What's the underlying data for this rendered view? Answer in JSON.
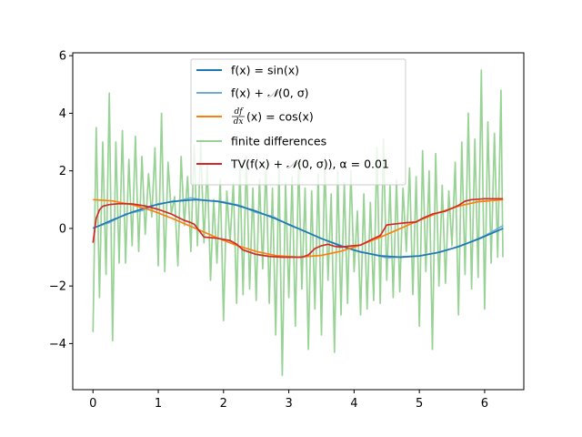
{
  "chart_data": {
    "type": "line",
    "title": "",
    "xlabel": "",
    "ylabel": "",
    "xlim": [
      -0.31,
      6.6
    ],
    "ylim": [
      -5.6,
      6.1
    ],
    "grid": false,
    "legend_position": "upper-center",
    "x_ticks": [
      {
        "value": 0,
        "label": "0"
      },
      {
        "value": 1,
        "label": "1"
      },
      {
        "value": 2,
        "label": "2"
      },
      {
        "value": 3,
        "label": "3"
      },
      {
        "value": 4,
        "label": "4"
      },
      {
        "value": 5,
        "label": "5"
      },
      {
        "value": 6,
        "label": "6"
      }
    ],
    "y_ticks": [
      {
        "value": -4,
        "label": "−4"
      },
      {
        "value": -2,
        "label": "−2"
      },
      {
        "value": 0,
        "label": "0"
      },
      {
        "value": 2,
        "label": "2"
      },
      {
        "value": 4,
        "label": "4"
      },
      {
        "value": 6,
        "label": "6"
      }
    ],
    "series": [
      {
        "name": "f(x) = sin(x)",
        "legend_prefix": "f(x) = sin(x)",
        "legend_suffix": "",
        "color": "#1f77b4",
        "x": [
          0,
          0.3,
          0.6,
          0.9,
          1.2,
          1.5708,
          1.9,
          2.2,
          2.5,
          2.8,
          3.1416,
          3.5,
          3.8,
          4.1,
          4.4,
          4.7124,
          5.0,
          5.3,
          5.6,
          5.9,
          6.2832
        ],
        "y": [
          0,
          0.296,
          0.565,
          0.783,
          0.932,
          1.0,
          0.946,
          0.808,
          0.598,
          0.335,
          0,
          -0.351,
          -0.612,
          -0.818,
          -0.952,
          -1.0,
          -0.959,
          -0.832,
          -0.631,
          -0.374,
          0
        ]
      },
      {
        "name": "f(x) + 𝒩(0, σ)",
        "legend_prefix": "f(x) + ",
        "legend_suffix": "(0, σ)",
        "color": "#6baed6",
        "x": [
          0,
          0.25,
          0.5,
          0.75,
          1.0,
          1.25,
          1.5,
          1.75,
          2.0,
          2.25,
          2.5,
          2.75,
          3.0,
          3.25,
          3.5,
          3.75,
          4.0,
          4.25,
          4.5,
          4.75,
          5.0,
          5.25,
          5.5,
          5.75,
          6.0,
          6.2832
        ],
        "y": [
          0.02,
          0.2,
          0.5,
          0.62,
          0.86,
          0.93,
          1.06,
          0.96,
          0.92,
          0.8,
          0.55,
          0.42,
          0.12,
          -0.1,
          -0.36,
          -0.55,
          -0.76,
          -0.88,
          -1.02,
          -0.98,
          -0.95,
          -0.85,
          -0.7,
          -0.5,
          -0.26,
          0.1
        ]
      },
      {
        "name": "df/dx(x) = cos(x)",
        "legend_prefix": "",
        "legend_suffix": "(x) = cos(x)",
        "color": "#ff7f0e",
        "x": [
          0,
          0.3,
          0.6,
          0.9,
          1.2,
          1.5708,
          1.9,
          2.2,
          2.5,
          2.8,
          3.1416,
          3.5,
          3.8,
          4.1,
          4.4,
          4.7124,
          5.0,
          5.3,
          5.6,
          5.9,
          6.2832
        ],
        "y": [
          1.0,
          0.955,
          0.825,
          0.622,
          0.362,
          0,
          -0.323,
          -0.589,
          -0.801,
          -0.942,
          -1.0,
          -0.936,
          -0.791,
          -0.575,
          -0.307,
          0,
          0.284,
          0.554,
          0.776,
          0.927,
          1.0
        ]
      },
      {
        "name": "finite differences",
        "legend_prefix": "finite differences",
        "legend_suffix": "",
        "color": "#98d395",
        "x": [
          0.0,
          0.05,
          0.1,
          0.15,
          0.2,
          0.25,
          0.3,
          0.35,
          0.4,
          0.45,
          0.5,
          0.55,
          0.6,
          0.65,
          0.7,
          0.75,
          0.8,
          0.85,
          0.9,
          0.95,
          1.0,
          1.05,
          1.1,
          1.15,
          1.2,
          1.25,
          1.3,
          1.35,
          1.4,
          1.45,
          1.5,
          1.55,
          1.6,
          1.65,
          1.7,
          1.75,
          1.8,
          1.85,
          1.9,
          1.95,
          2.0,
          2.05,
          2.1,
          2.15,
          2.2,
          2.25,
          2.3,
          2.35,
          2.4,
          2.45,
          2.5,
          2.55,
          2.6,
          2.65,
          2.7,
          2.75,
          2.8,
          2.85,
          2.9,
          2.95,
          3.0,
          3.05,
          3.1,
          3.15,
          3.2,
          3.25,
          3.3,
          3.35,
          3.4,
          3.45,
          3.5,
          3.55,
          3.6,
          3.65,
          3.7,
          3.75,
          3.8,
          3.85,
          3.9,
          3.95,
          4.0,
          4.05,
          4.1,
          4.15,
          4.2,
          4.25,
          4.3,
          4.35,
          4.4,
          4.45,
          4.5,
          4.55,
          4.6,
          4.65,
          4.7,
          4.75,
          4.8,
          4.85,
          4.9,
          4.95,
          5.0,
          5.05,
          5.1,
          5.15,
          5.2,
          5.25,
          5.3,
          5.35,
          5.4,
          5.45,
          5.5,
          5.55,
          5.6,
          5.65,
          5.7,
          5.75,
          5.8,
          5.85,
          5.9,
          5.95,
          6.0,
          6.05,
          6.1,
          6.15,
          6.2,
          6.25,
          6.28
        ],
        "y": [
          -3.6,
          3.5,
          -2.4,
          3.0,
          -1.6,
          4.7,
          -3.9,
          3.0,
          -1.2,
          3.4,
          -1.2,
          2.4,
          -0.6,
          3.2,
          -0.8,
          2.5,
          -0.2,
          1.9,
          0.4,
          2.8,
          -1.3,
          4.0,
          -1.5,
          2.3,
          0.5,
          1.1,
          -1.3,
          2.5,
          0.1,
          1.8,
          -0.8,
          2.9,
          -0.6,
          3.0,
          -0.5,
          2.2,
          -1.8,
          1.0,
          -1.2,
          1.7,
          -3.2,
          1.3,
          -0.5,
          1.6,
          -2.6,
          2.2,
          -2.3,
          2.5,
          -2.1,
          1.4,
          -2.5,
          1.7,
          -1.4,
          2.3,
          -2.6,
          1.4,
          -3.7,
          2.1,
          -5.1,
          1.6,
          -2.4,
          1.8,
          -3.4,
          2.4,
          -2.1,
          1.4,
          -4.2,
          1.3,
          -2.8,
          1.9,
          -3.7,
          2.4,
          -1.8,
          1.2,
          -4.3,
          2.0,
          -3.0,
          1.6,
          -2.6,
          2.0,
          -1.5,
          0.6,
          -3.0,
          1.2,
          -2.8,
          0.9,
          -2.5,
          2.8,
          -2.6,
          3.1,
          -1.8,
          1.5,
          -2.4,
          1.7,
          -2.2,
          1.4,
          -0.8,
          2.1,
          -2.3,
          1.8,
          -3.4,
          2.7,
          -1.5,
          2.0,
          -4.2,
          2.6,
          -2.0,
          1.5,
          -1.9,
          1.3,
          -0.6,
          2.3,
          -3.0,
          3.0,
          -1.6,
          4.0,
          -2.1,
          3.1,
          -1.7,
          5.5,
          -2.8,
          3.7,
          -1.2,
          3.3,
          -1.0,
          4.8,
          -1.0
        ]
      },
      {
        "name": "TV(f(x) + 𝒩(0, σ)), α = 0.01",
        "legend_prefix": "TV(f(x) + ",
        "legend_suffix": "(0, σ)), α = 0.01",
        "color": "#d62728",
        "x": [
          0,
          0.05,
          0.1,
          0.15,
          0.25,
          0.4,
          0.6,
          0.8,
          1.0,
          1.2,
          1.4,
          1.5,
          1.55,
          1.6,
          1.7,
          1.9,
          2.1,
          2.2,
          2.3,
          2.5,
          2.7,
          2.9,
          3.0,
          3.2,
          3.3,
          3.4,
          3.5,
          3.6,
          3.7,
          3.8,
          3.9,
          4.1,
          4.3,
          4.4,
          4.5,
          4.6,
          4.8,
          4.95,
          5.05,
          5.2,
          5.4,
          5.6,
          5.7,
          5.8,
          6.0,
          6.28
        ],
        "y": [
          -0.5,
          0.35,
          0.65,
          0.77,
          0.83,
          0.86,
          0.85,
          0.78,
          0.66,
          0.5,
          0.28,
          0.2,
          0.15,
          0.0,
          -0.3,
          -0.34,
          -0.42,
          -0.55,
          -0.75,
          -0.9,
          -0.97,
          -1.0,
          -1.0,
          -1.0,
          -0.92,
          -0.7,
          -0.6,
          -0.55,
          -0.62,
          -0.65,
          -0.62,
          -0.58,
          -0.35,
          -0.25,
          0.12,
          0.15,
          0.2,
          0.22,
          0.35,
          0.5,
          0.6,
          0.8,
          0.95,
          1.0,
          1.03,
          1.03
        ]
      }
    ]
  }
}
